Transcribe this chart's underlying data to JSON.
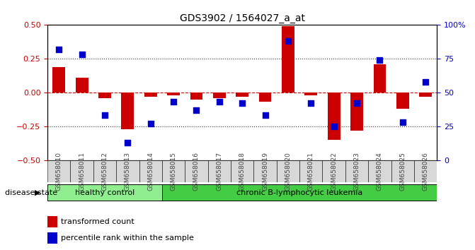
{
  "title": "GDS3902 / 1564027_a_at",
  "samples": [
    "GSM658010",
    "GSM658011",
    "GSM658012",
    "GSM658013",
    "GSM658014",
    "GSM658015",
    "GSM658016",
    "GSM658017",
    "GSM658018",
    "GSM658019",
    "GSM658020",
    "GSM658021",
    "GSM658022",
    "GSM658023",
    "GSM658024",
    "GSM658025",
    "GSM658026"
  ],
  "red_bars": [
    0.19,
    0.11,
    -0.04,
    -0.27,
    -0.03,
    -0.02,
    -0.05,
    -0.04,
    -0.03,
    -0.07,
    0.49,
    -0.02,
    -0.35,
    -0.28,
    0.21,
    -0.12,
    -0.03
  ],
  "blue_pct": [
    82,
    78,
    33,
    13,
    27,
    43,
    37,
    43,
    42,
    33,
    88,
    42,
    25,
    42,
    74,
    28,
    58
  ],
  "healthy_count": 5,
  "ylim_left": [
    -0.5,
    0.5
  ],
  "ylim_right": [
    0,
    100
  ],
  "yticks_left": [
    -0.5,
    -0.25,
    0.0,
    0.25,
    0.5
  ],
  "yticks_right": [
    0,
    25,
    50,
    75,
    100
  ],
  "left_color": "#cc0000",
  "right_color": "#0000cc",
  "healthy_color": "#90ee90",
  "leukemia_color": "#44cc44",
  "bar_width": 0.55,
  "group1_label": "healthy control",
  "group2_label": "chronic B-lymphocytic leukemia",
  "disease_label": "disease state",
  "legend1": "transformed count",
  "legend2": "percentile rank within the sample",
  "zero_line_color": "#cc0000",
  "dot_line_color": "#333333",
  "xticklabels_color": "#444444",
  "xticklabels_bg": "#d8d8d8"
}
